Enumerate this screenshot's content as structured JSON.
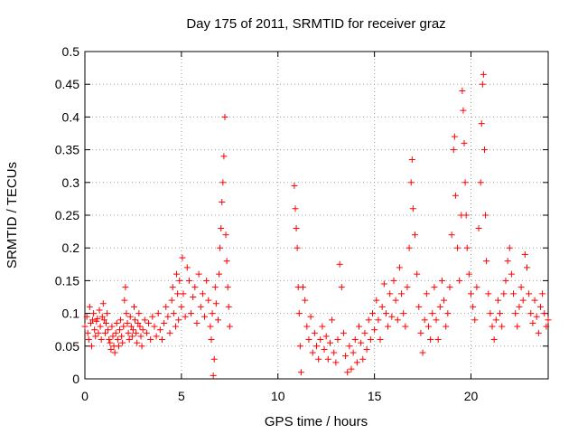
{
  "chart_data": {
    "type": "scatter",
    "title": "Day 175 of 2011, SRMTID for receiver graz",
    "xlabel": "GPS time / hours",
    "ylabel": "SRMTID / TECUs",
    "xlim": [
      0,
      24
    ],
    "ylim": [
      0,
      0.5
    ],
    "grid": true,
    "marker": "plus",
    "color": "#ff0000",
    "x_ticks": [
      0,
      5,
      10,
      15,
      20
    ],
    "x_tick_labels": [
      "0",
      "5",
      "10",
      "15",
      "20"
    ],
    "y_ticks": [
      0,
      0.05,
      0.1,
      0.15,
      0.2,
      0.25,
      0.3,
      0.35,
      0.4,
      0.45,
      0.5
    ],
    "y_tick_labels": [
      "0",
      "0.05",
      "0.1",
      "0.15",
      "0.2",
      "0.25",
      "0.3",
      "0.35",
      "0.4",
      "0.45",
      "0.5"
    ],
    "series": [
      {
        "name": "SRMTID",
        "points": [
          [
            0.0,
            0.08
          ],
          [
            0.1,
            0.095
          ],
          [
            0.15,
            0.07
          ],
          [
            0.2,
            0.06
          ],
          [
            0.25,
            0.11
          ],
          [
            0.3,
            0.085
          ],
          [
            0.35,
            0.05
          ],
          [
            0.4,
            0.09
          ],
          [
            0.45,
            0.1
          ],
          [
            0.5,
            0.075
          ],
          [
            0.55,
            0.065
          ],
          [
            0.6,
            0.088
          ],
          [
            0.65,
            0.092
          ],
          [
            0.7,
            0.07
          ],
          [
            0.75,
            0.105
          ],
          [
            0.8,
            0.08
          ],
          [
            0.85,
            0.06
          ],
          [
            0.9,
            0.095
          ],
          [
            0.95,
            0.115
          ],
          [
            1.0,
            0.09
          ],
          [
            1.05,
            0.07
          ],
          [
            1.1,
            0.085
          ],
          [
            1.15,
            0.1
          ],
          [
            1.2,
            0.075
          ],
          [
            1.25,
            0.06
          ],
          [
            1.3,
            0.055
          ],
          [
            1.35,
            0.045
          ],
          [
            1.4,
            0.08
          ],
          [
            1.45,
            0.065
          ],
          [
            1.5,
            0.05
          ],
          [
            1.55,
            0.04
          ],
          [
            1.6,
            0.07
          ],
          [
            1.65,
            0.085
          ],
          [
            1.7,
            0.06
          ],
          [
            1.75,
            0.05
          ],
          [
            1.8,
            0.075
          ],
          [
            1.85,
            0.09
          ],
          [
            1.9,
            0.065
          ],
          [
            1.95,
            0.055
          ],
          [
            2.0,
            0.08
          ],
          [
            2.05,
            0.12
          ],
          [
            2.1,
            0.14
          ],
          [
            2.15,
            0.1
          ],
          [
            2.2,
            0.085
          ],
          [
            2.25,
            0.07
          ],
          [
            2.3,
            0.06
          ],
          [
            2.35,
            0.095
          ],
          [
            2.4,
            0.08
          ],
          [
            2.45,
            0.065
          ],
          [
            2.5,
            0.075
          ],
          [
            2.55,
            0.11
          ],
          [
            2.6,
            0.09
          ],
          [
            2.65,
            0.07
          ],
          [
            2.7,
            0.055
          ],
          [
            2.75,
            0.085
          ],
          [
            2.8,
            0.1
          ],
          [
            2.85,
            0.08
          ],
          [
            2.9,
            0.065
          ],
          [
            2.95,
            0.05
          ],
          [
            3.0,
            0.075
          ],
          [
            3.1,
            0.09
          ],
          [
            3.2,
            0.07
          ],
          [
            3.3,
            0.085
          ],
          [
            3.4,
            0.06
          ],
          [
            3.5,
            0.095
          ],
          [
            3.6,
            0.08
          ],
          [
            3.7,
            0.065
          ],
          [
            3.8,
            0.1
          ],
          [
            3.9,
            0.075
          ],
          [
            4.0,
            0.06
          ],
          [
            4.1,
            0.085
          ],
          [
            4.2,
            0.11
          ],
          [
            4.3,
            0.095
          ],
          [
            4.4,
            0.07
          ],
          [
            4.5,
            0.12
          ],
          [
            4.55,
            0.14
          ],
          [
            4.6,
            0.1
          ],
          [
            4.7,
            0.08
          ],
          [
            4.75,
            0.16
          ],
          [
            4.8,
            0.13
          ],
          [
            4.85,
            0.09
          ],
          [
            4.9,
            0.15
          ],
          [
            5.0,
            0.11
          ],
          [
            5.05,
            0.185
          ],
          [
            5.1,
            0.13
          ],
          [
            5.2,
            0.095
          ],
          [
            5.3,
            0.17
          ],
          [
            5.4,
            0.15
          ],
          [
            5.5,
            0.1
          ],
          [
            5.6,
            0.125
          ],
          [
            5.7,
            0.14
          ],
          [
            5.8,
            0.085
          ],
          [
            5.9,
            0.16
          ],
          [
            6.0,
            0.11
          ],
          [
            6.1,
            0.13
          ],
          [
            6.2,
            0.095
          ],
          [
            6.3,
            0.15
          ],
          [
            6.4,
            0.12
          ],
          [
            6.5,
            0.08
          ],
          [
            6.55,
            0.06
          ],
          [
            6.6,
            0.1
          ],
          [
            6.65,
            0.005
          ],
          [
            6.7,
            0.03
          ],
          [
            6.75,
            0.14
          ],
          [
            6.8,
            0.115
          ],
          [
            6.9,
            0.09
          ],
          [
            6.95,
            0.16
          ],
          [
            7.0,
            0.2
          ],
          [
            7.05,
            0.23
          ],
          [
            7.1,
            0.27
          ],
          [
            7.15,
            0.3
          ],
          [
            7.2,
            0.34
          ],
          [
            7.25,
            0.4
          ],
          [
            7.3,
            0.22
          ],
          [
            7.35,
            0.18
          ],
          [
            7.4,
            0.14
          ],
          [
            7.45,
            0.11
          ],
          [
            7.5,
            0.08
          ],
          [
            10.85,
            0.295
          ],
          [
            10.9,
            0.26
          ],
          [
            10.95,
            0.23
          ],
          [
            11.0,
            0.2
          ],
          [
            11.05,
            0.14
          ],
          [
            11.1,
            0.1
          ],
          [
            11.15,
            0.05
          ],
          [
            11.2,
            0.01
          ],
          [
            11.3,
            0.14
          ],
          [
            11.4,
            0.12
          ],
          [
            11.5,
            0.08
          ],
          [
            11.6,
            0.06
          ],
          [
            11.7,
            0.095
          ],
          [
            11.8,
            0.04
          ],
          [
            11.9,
            0.07
          ],
          [
            12.0,
            0.05
          ],
          [
            12.1,
            0.03
          ],
          [
            12.2,
            0.06
          ],
          [
            12.3,
            0.08
          ],
          [
            12.4,
            0.045
          ],
          [
            12.5,
            0.065
          ],
          [
            12.6,
            0.03
          ],
          [
            12.7,
            0.055
          ],
          [
            12.8,
            0.09
          ],
          [
            12.9,
            0.04
          ],
          [
            13.0,
            0.025
          ],
          [
            13.1,
            0.06
          ],
          [
            13.2,
            0.175
          ],
          [
            13.3,
            0.14
          ],
          [
            13.4,
            0.07
          ],
          [
            13.5,
            0.035
          ],
          [
            13.6,
            0.01
          ],
          [
            13.7,
            0.05
          ],
          [
            13.8,
            0.015
          ],
          [
            13.9,
            0.04
          ],
          [
            14.0,
            0.06
          ],
          [
            14.1,
            0.025
          ],
          [
            14.2,
            0.08
          ],
          [
            14.3,
            0.055
          ],
          [
            14.4,
            0.03
          ],
          [
            14.5,
            0.07
          ],
          [
            14.6,
            0.045
          ],
          [
            14.7,
            0.09
          ],
          [
            14.8,
            0.06
          ],
          [
            14.9,
            0.1
          ],
          [
            15.0,
            0.075
          ],
          [
            15.1,
            0.12
          ],
          [
            15.2,
            0.09
          ],
          [
            15.3,
            0.06
          ],
          [
            15.4,
            0.11
          ],
          [
            15.5,
            0.145
          ],
          [
            15.6,
            0.1
          ],
          [
            15.7,
            0.08
          ],
          [
            15.8,
            0.13
          ],
          [
            15.9,
            0.095
          ],
          [
            16.0,
            0.15
          ],
          [
            16.1,
            0.12
          ],
          [
            16.2,
            0.09
          ],
          [
            16.3,
            0.17
          ],
          [
            16.4,
            0.13
          ],
          [
            16.5,
            0.1
          ],
          [
            16.6,
            0.08
          ],
          [
            16.7,
            0.14
          ],
          [
            16.8,
            0.2
          ],
          [
            16.9,
            0.3
          ],
          [
            16.95,
            0.335
          ],
          [
            17.0,
            0.26
          ],
          [
            17.1,
            0.22
          ],
          [
            17.2,
            0.16
          ],
          [
            17.3,
            0.11
          ],
          [
            17.4,
            0.07
          ],
          [
            17.5,
            0.04
          ],
          [
            17.6,
            0.09
          ],
          [
            17.7,
            0.13
          ],
          [
            17.8,
            0.08
          ],
          [
            17.9,
            0.06
          ],
          [
            18.0,
            0.1
          ],
          [
            18.1,
            0.14
          ],
          [
            18.2,
            0.09
          ],
          [
            18.3,
            0.06
          ],
          [
            18.4,
            0.11
          ],
          [
            18.5,
            0.15
          ],
          [
            18.6,
            0.12
          ],
          [
            18.7,
            0.08
          ],
          [
            18.8,
            0.1
          ],
          [
            18.9,
            0.14
          ],
          [
            19.0,
            0.22
          ],
          [
            19.1,
            0.35
          ],
          [
            19.15,
            0.37
          ],
          [
            19.2,
            0.28
          ],
          [
            19.3,
            0.2
          ],
          [
            19.4,
            0.15
          ],
          [
            19.5,
            0.25
          ],
          [
            19.55,
            0.44
          ],
          [
            19.6,
            0.41
          ],
          [
            19.65,
            0.36
          ],
          [
            19.7,
            0.3
          ],
          [
            19.75,
            0.25
          ],
          [
            19.8,
            0.2
          ],
          [
            19.9,
            0.16
          ],
          [
            20.0,
            0.13
          ],
          [
            20.1,
            0.11
          ],
          [
            20.2,
            0.09
          ],
          [
            20.3,
            0.14
          ],
          [
            20.4,
            0.23
          ],
          [
            20.5,
            0.3
          ],
          [
            20.55,
            0.39
          ],
          [
            20.6,
            0.45
          ],
          [
            20.65,
            0.465
          ],
          [
            20.7,
            0.35
          ],
          [
            20.75,
            0.25
          ],
          [
            20.8,
            0.18
          ],
          [
            20.9,
            0.13
          ],
          [
            21.0,
            0.1
          ],
          [
            21.1,
            0.08
          ],
          [
            21.2,
            0.06
          ],
          [
            21.3,
            0.09
          ],
          [
            21.4,
            0.12
          ],
          [
            21.5,
            0.1
          ],
          [
            21.6,
            0.08
          ],
          [
            21.7,
            0.13
          ],
          [
            21.8,
            0.15
          ],
          [
            21.9,
            0.18
          ],
          [
            22.0,
            0.2
          ],
          [
            22.1,
            0.16
          ],
          [
            22.2,
            0.13
          ],
          [
            22.3,
            0.1
          ],
          [
            22.4,
            0.08
          ],
          [
            22.5,
            0.11
          ],
          [
            22.6,
            0.14
          ],
          [
            22.7,
            0.12
          ],
          [
            22.8,
            0.19
          ],
          [
            22.9,
            0.17
          ],
          [
            23.0,
            0.13
          ],
          [
            23.1,
            0.1
          ],
          [
            23.2,
            0.085
          ],
          [
            23.3,
            0.12
          ],
          [
            23.4,
            0.095
          ],
          [
            23.5,
            0.07
          ],
          [
            23.6,
            0.11
          ],
          [
            23.7,
            0.13
          ],
          [
            23.8,
            0.1
          ],
          [
            23.9,
            0.08
          ],
          [
            24.0,
            0.09
          ]
        ]
      }
    ]
  }
}
